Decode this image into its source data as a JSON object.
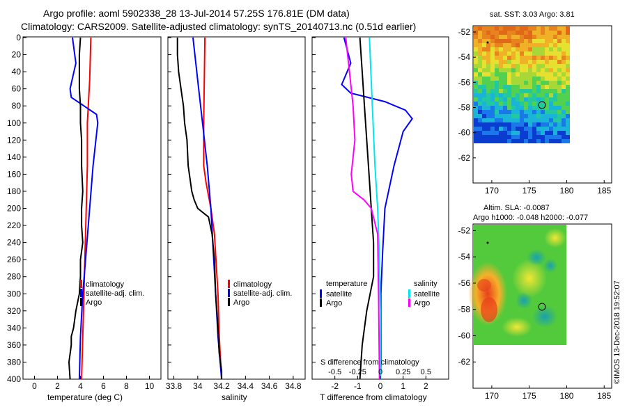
{
  "title": {
    "line1": "Argo profile: aoml 5902338_28 13-Jul-2014 57.25S 176.81E (DM data)",
    "line2": "Climatology: CARS2009. Satellite-adjusted climatology: synTS_20140713.nc (0.51d earlier)"
  },
  "credit": "©IMOS 13-Dec-2018 19:52:07",
  "colors": {
    "red": "#ff0000",
    "blue": "#0000ff",
    "black": "#000000",
    "cyan": "#00e5ee",
    "magenta": "#ff00ff"
  },
  "chart_data": [
    {
      "type": "line",
      "id": "temperature",
      "xlabel": "temperature (deg C)",
      "ylabel": "depth",
      "xlim": [
        -1,
        11
      ],
      "ylim": [
        400,
        0
      ],
      "xticks": [
        0,
        2,
        4,
        6,
        8,
        10
      ],
      "yticks": [
        0,
        20,
        40,
        60,
        80,
        100,
        120,
        140,
        160,
        180,
        200,
        220,
        240,
        260,
        280,
        300,
        320,
        340,
        360,
        380,
        400
      ],
      "legend": [
        "climatology",
        "satellite-adj. clim.",
        "Argo"
      ],
      "series": [
        {
          "name": "climatology",
          "color": "red",
          "depth": [
            0,
            50,
            100,
            150,
            200,
            250,
            300,
            350,
            400
          ],
          "values": [
            4.9,
            4.8,
            4.6,
            4.6,
            4.5,
            4.4,
            4.3,
            4.2,
            4.1
          ]
        },
        {
          "name": "satellite-adj. clim.",
          "color": "blue",
          "depth": [
            0,
            30,
            60,
            70,
            80,
            90,
            100,
            150,
            200,
            250,
            300,
            350,
            400
          ],
          "values": [
            3.3,
            3.6,
            3.1,
            3.2,
            4.3,
            5.4,
            5.5,
            5.1,
            4.8,
            4.5,
            4.2,
            4.0,
            3.9
          ]
        },
        {
          "name": "Argo",
          "color": "black",
          "depth": [
            0,
            20,
            40,
            60,
            80,
            100,
            120,
            150,
            180,
            200,
            220,
            240,
            260,
            280,
            300,
            320,
            340,
            350,
            360,
            380,
            400
          ],
          "values": [
            4.0,
            3.9,
            3.9,
            3.9,
            4.0,
            4.0,
            4.1,
            4.1,
            4.2,
            4.1,
            4.1,
            4.2,
            4.0,
            4.0,
            3.9,
            3.6,
            3.4,
            3.2,
            3.2,
            3.0,
            3.1
          ]
        }
      ]
    },
    {
      "type": "line",
      "id": "salinity",
      "xlabel": "salinity",
      "ylim": [
        400,
        0
      ],
      "xlim": [
        33.75,
        34.9
      ],
      "xticks": [
        "33.8",
        "34",
        "34.2",
        "34.4",
        "34.6",
        "34.8"
      ],
      "legend": [
        "climatology",
        "satellite-adj. clim.",
        "Argo"
      ],
      "series": [
        {
          "name": "climatology",
          "color": "red",
          "depth": [
            0,
            100,
            150,
            170,
            200,
            230,
            300,
            350,
            400
          ],
          "values": [
            34.06,
            34.05,
            34.05,
            34.07,
            34.11,
            34.14,
            34.17,
            34.18,
            34.2
          ]
        },
        {
          "name": "satellite-adj. clim.",
          "color": "blue",
          "depth": [
            0,
            50,
            100,
            150,
            200,
            250,
            300,
            350,
            400
          ],
          "values": [
            33.96,
            34.0,
            34.04,
            34.08,
            34.11,
            34.13,
            34.15,
            34.17,
            34.2
          ]
        },
        {
          "name": "Argo",
          "color": "black",
          "depth": [
            0,
            20,
            40,
            60,
            80,
            100,
            120,
            150,
            180,
            190,
            200,
            210,
            230,
            260,
            300,
            340,
            370,
            390,
            400
          ],
          "values": [
            33.83,
            33.83,
            33.84,
            33.86,
            33.88,
            33.89,
            33.91,
            33.92,
            33.95,
            33.97,
            34.0,
            34.09,
            34.12,
            34.14,
            34.15,
            34.17,
            34.18,
            34.2,
            34.2
          ]
        }
      ]
    },
    {
      "type": "line",
      "id": "difference",
      "xlabel": "T difference from climatology",
      "xlabel_top": "S difference from climatology",
      "ylim": [
        400,
        0
      ],
      "xlim": [
        -3,
        3
      ],
      "xticks_T": [
        "-2",
        "-1",
        "0",
        "1",
        "2"
      ],
      "xticks_S": [
        "-0.5",
        "-0.25",
        "0",
        "0.25",
        "0.5"
      ],
      "legend_temperature": {
        "heading": "temperature",
        "items": [
          "satellite",
          "Argo"
        ]
      },
      "legend_salinity": {
        "heading": "salinity",
        "items": [
          "satellite",
          "Argo"
        ]
      },
      "series": [
        {
          "name": "temperature satellite",
          "color": "blue",
          "depth": [
            0,
            30,
            55,
            65,
            75,
            85,
            95,
            110,
            150,
            200,
            250,
            300,
            380,
            400
          ],
          "values": [
            -1.6,
            -1.3,
            -1.7,
            -1.3,
            0.2,
            1.1,
            1.4,
            1.0,
            0.6,
            0.2,
            0.1,
            0.02,
            0.02,
            0.0
          ]
        },
        {
          "name": "temperature Argo",
          "color": "black",
          "depth": [
            0,
            40,
            80,
            120,
            160,
            200,
            240,
            280,
            320,
            360,
            400
          ],
          "values": [
            -0.9,
            -0.8,
            -0.7,
            -0.6,
            -0.5,
            -0.4,
            -0.3,
            -0.3,
            -0.6,
            -0.8,
            -0.9
          ]
        },
        {
          "name": "salinity satellite",
          "color": "cyan",
          "depth": [
            0,
            50,
            100,
            150,
            200,
            260,
            320,
            400
          ],
          "values": [
            -0.12,
            -0.1,
            -0.08,
            -0.06,
            -0.03,
            -0.01,
            0.0,
            0.0
          ]
        },
        {
          "name": "salinity Argo",
          "color": "magenta",
          "depth": [
            0,
            40,
            80,
            120,
            160,
            180,
            190,
            200,
            230,
            300,
            400
          ],
          "values": [
            -0.38,
            -0.34,
            -0.3,
            -0.28,
            -0.32,
            -0.3,
            -0.18,
            -0.1,
            -0.03,
            -0.02,
            -0.01
          ]
        }
      ]
    },
    {
      "type": "heatmap",
      "id": "sst-map",
      "title": "sat. SST: 3.03 Argo: 3.81",
      "xlim": [
        167.5,
        186
      ],
      "ylim": [
        -64,
        -51.5
      ],
      "xticks": [
        "170",
        "175",
        "180",
        "185"
      ],
      "yticks": [
        "-52",
        "-54",
        "-56",
        "-58",
        "-60",
        "-62"
      ],
      "data_extent_lon": [
        167.5,
        180
      ],
      "data_extent_lat": [
        -60,
        -51.5
      ],
      "argo_position": [
        176.81,
        -57.25
      ],
      "previous_position": [
        169,
        -52.5
      ]
    },
    {
      "type": "heatmap",
      "id": "sla-map",
      "title_line1": "Altim. SLA: -0.0087",
      "title_line2": "Argo h1000: -0.048 h2000: -0.077",
      "xlim": [
        167.5,
        186
      ],
      "ylim": [
        -64,
        -51.5
      ],
      "xticks": [
        "170",
        "175",
        "180",
        "185"
      ],
      "yticks": [
        "-52",
        "-54",
        "-56",
        "-58",
        "-60",
        "-62"
      ],
      "data_extent_lon": [
        167.5,
        180
      ],
      "data_extent_lat": [
        -60,
        -51.5
      ],
      "argo_position": [
        176.81,
        -57.25
      ],
      "previous_position": [
        169,
        -52.5
      ]
    }
  ]
}
